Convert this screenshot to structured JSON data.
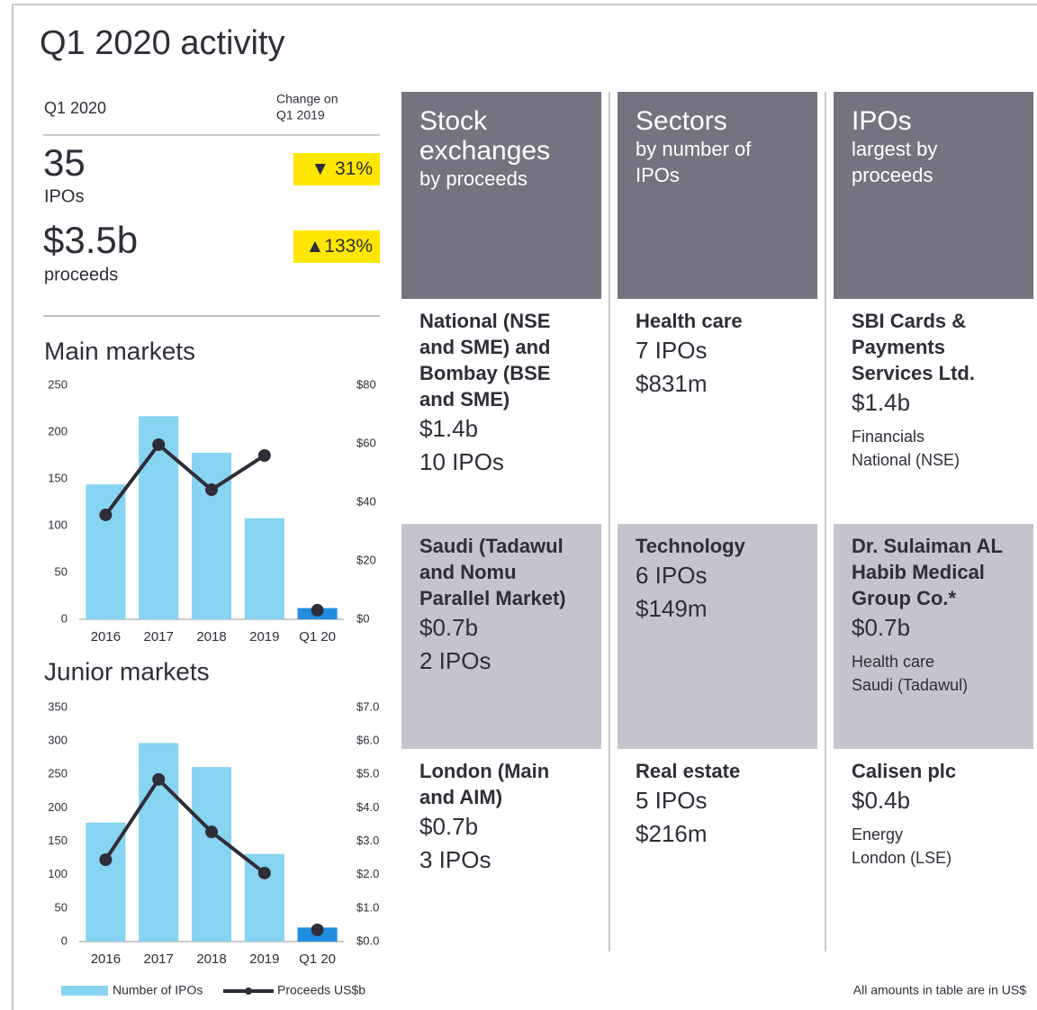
{
  "title": "Q1 2020 activity",
  "summary": {
    "period": "Q1 2020",
    "change_label": [
      "Change on",
      "Q1 2019"
    ],
    "items": [
      {
        "value": "35",
        "label": "IPOs",
        "change": "▼ 31%"
      },
      {
        "value": "$3.5b",
        "label": "proceeds",
        "change": "▲133%"
      }
    ]
  },
  "chart_data": [
    {
      "type": "bar",
      "title": "Main markets",
      "categories": [
        "2016",
        "2017",
        "2018",
        "2019",
        "Q1 20"
      ],
      "series": [
        {
          "type": "bar",
          "color": "#87d3f2",
          "colors": [
            "#87d3f2",
            "#87d3f2",
            "#87d3f2",
            "#87d3f2",
            "#1f8ee0"
          ],
          "values": [
            144,
            217,
            178,
            108,
            12
          ]
        },
        {
          "type": "line",
          "axis": "y2",
          "color": "#2e2e38",
          "values": [
            35.7,
            59.7,
            44.3,
            56,
            3.1
          ]
        }
      ],
      "ylim": [
        0,
        250
      ],
      "yticks": [
        0,
        50,
        100,
        150,
        200,
        250
      ],
      "y2lim": [
        0,
        80
      ],
      "y2ticks": [
        {
          "value": 0,
          "label": "$0"
        },
        {
          "value": 20,
          "label": "$20"
        },
        {
          "value": 40,
          "label": "$40"
        },
        {
          "value": 60,
          "label": "$60"
        },
        {
          "value": 80,
          "label": "$80"
        }
      ]
    },
    {
      "type": "bar",
      "title": "Junior markets",
      "categories": [
        "2016",
        "2017",
        "2018",
        "2019",
        "Q1 20"
      ],
      "series": [
        {
          "type": "bar",
          "name": "Number of IPOs",
          "color": "#87d3f2",
          "colors": [
            "#87d3f2",
            "#87d3f2",
            "#87d3f2",
            "#87d3f2",
            "#1f8ee0"
          ],
          "values": [
            178,
            297,
            261,
            131,
            21
          ]
        },
        {
          "type": "line",
          "name": "Proceeds US$b",
          "axis": "y2",
          "color": "#2e2e38",
          "values": [
            2.45,
            4.85,
            3.28,
            2.05,
            0.35
          ]
        }
      ],
      "ylim": [
        0,
        350
      ],
      "yticks": [
        0,
        50,
        100,
        150,
        200,
        250,
        300,
        350
      ],
      "y2lim": [
        0,
        7
      ],
      "y2ticks": [
        {
          "value": 0,
          "label": "$0.0"
        },
        {
          "value": 1,
          "label": "$1.0"
        },
        {
          "value": 2,
          "label": "$2.0"
        },
        {
          "value": 3,
          "label": "$3.0"
        },
        {
          "value": 4,
          "label": "$4.0"
        },
        {
          "value": 5,
          "label": "$5.0"
        },
        {
          "value": 6,
          "label": "$6.0"
        },
        {
          "value": 7,
          "label": "$7.0"
        }
      ]
    }
  ],
  "table": {
    "columns": [
      {
        "title": "Stock exchanges",
        "subtitle": "by proceeds",
        "rows": [
          {
            "name": "National (NSE and SME) and Bombay (BSE and SME)",
            "proceeds": "$1.4b",
            "ipos": "10 IPOs"
          },
          {
            "name": "Saudi (Tadawul and Nomu Parallel Market)",
            "proceeds": "$0.7b",
            "ipos": "2 IPOs"
          },
          {
            "name": "London (Main and AIM)",
            "proceeds": "$0.7b",
            "ipos": "3 IPOs"
          }
        ]
      },
      {
        "title": "Sectors",
        "subtitle": "by number of IPOs",
        "rows": [
          {
            "name": "Health care",
            "ipos": "7 IPOs",
            "proceeds": "$831m"
          },
          {
            "name": "Technology",
            "ipos": "6 IPOs",
            "proceeds": "$149m"
          },
          {
            "name": "Real estate",
            "ipos": "5 IPOs",
            "proceeds": "$216m"
          }
        ]
      },
      {
        "title": "IPOs",
        "subtitle": "largest by proceeds",
        "rows": [
          {
            "name": "SBI Cards & Payments Services Ltd.",
            "proceeds": "$1.4b",
            "sector": "Financials",
            "exchange": "National (NSE)"
          },
          {
            "name": "Dr. Sulaiman AL Habib Medical Group Co.*",
            "proceeds": "$0.7b",
            "sector": "Health care",
            "exchange": "Saudi (Tadawul)"
          },
          {
            "name": "Calisen plc",
            "proceeds": "$0.4b",
            "sector": "Energy",
            "exchange": "London (LSE)"
          }
        ]
      }
    ],
    "footnote": "All amounts in table are in US$"
  }
}
